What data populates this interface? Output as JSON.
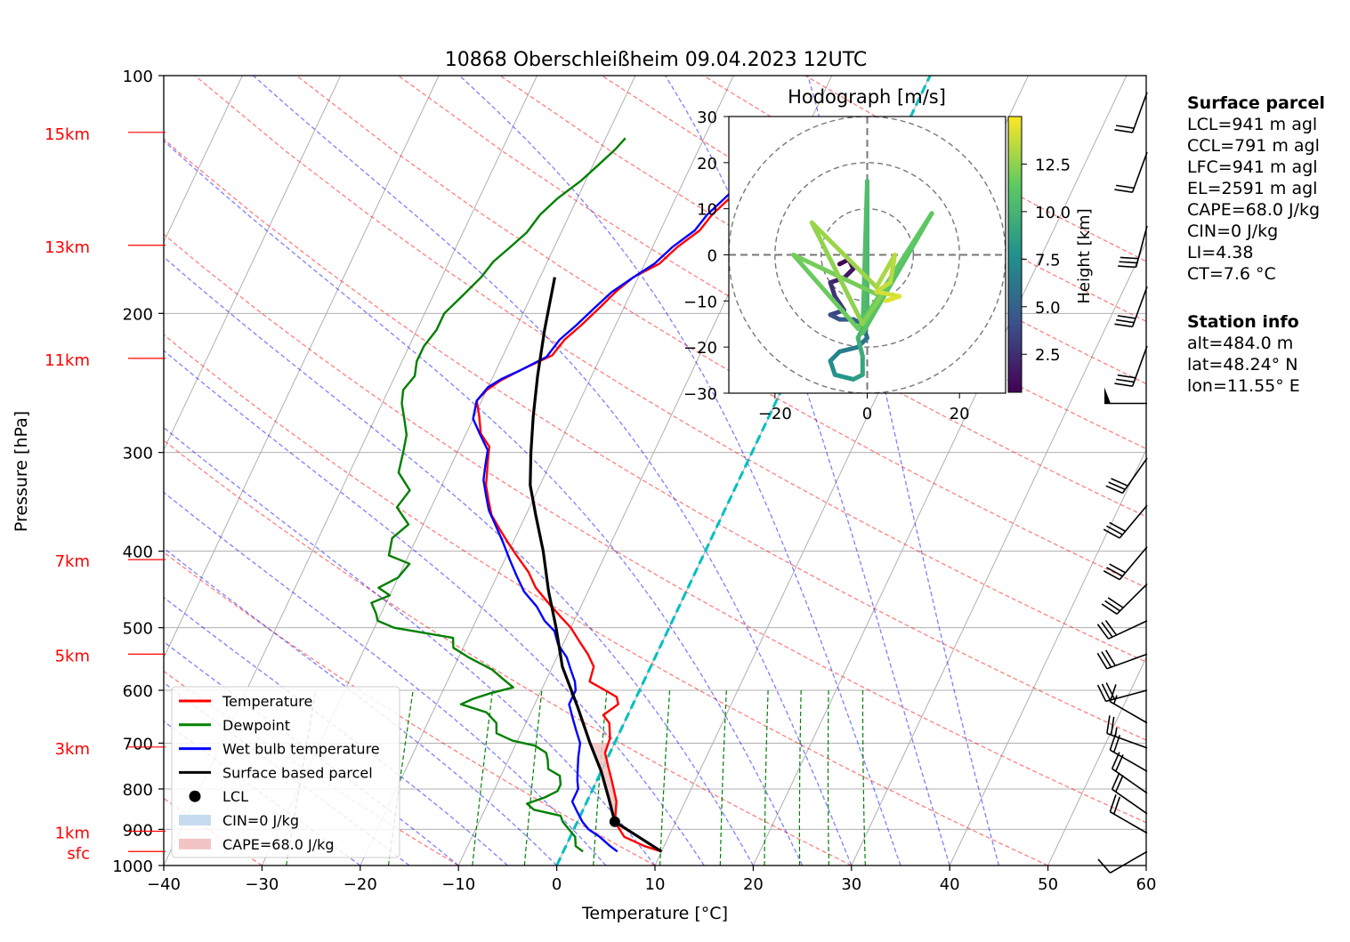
{
  "chart_data": {
    "type": "line",
    "title": "10868 Oberschleißheim 09.04.2023 12UTC",
    "xlabel": "Temperature [°C]",
    "ylabel": "Pressure [hPa]",
    "xlim": [
      -40,
      60
    ],
    "ylim": [
      1000,
      100
    ],
    "y_scale": "log",
    "x_ticks": [
      "−40",
      "−30",
      "−20",
      "−10",
      "0",
      "10",
      "20",
      "30",
      "40",
      "50",
      "60"
    ],
    "y_ticks": [
      {
        "p": 1000,
        "label": "1000"
      },
      {
        "p": 900,
        "label": "900"
      },
      {
        "p": 800,
        "label": "800"
      },
      {
        "p": 700,
        "label": "700"
      },
      {
        "p": 600,
        "label": "600"
      },
      {
        "p": 500,
        "label": "500"
      },
      {
        "p": 400,
        "label": "400"
      },
      {
        "p": 300,
        "label": "300"
      },
      {
        "p": 200,
        "label": "200"
      },
      {
        "p": 100,
        "label": "100"
      }
    ],
    "height_labels": [
      {
        "p": 960,
        "label": "sfc"
      },
      {
        "p": 905,
        "label": "1km"
      },
      {
        "p": 708,
        "label": "3km"
      },
      {
        "p": 540,
        "label": "5km"
      },
      {
        "p": 410,
        "label": "7km"
      },
      {
        "p": 228,
        "label": "11km"
      },
      {
        "p": 164,
        "label": "13km"
      },
      {
        "p": 118,
        "label": "15km"
      }
    ],
    "grid": true,
    "legend_position": "bottom-left",
    "series": [
      {
        "name": "Temperature",
        "color": "#ff0000",
        "points": [
          [
            10.0,
            960
          ],
          [
            8.0,
            945
          ],
          [
            5.5,
            920
          ],
          [
            3.8,
            880
          ],
          [
            3.5,
            860
          ],
          [
            3.0,
            830
          ],
          [
            1.5,
            780
          ],
          [
            0.5,
            750
          ],
          [
            -0.5,
            720
          ],
          [
            -0.7,
            690
          ],
          [
            -1.5,
            660
          ],
          [
            -2.5,
            645
          ],
          [
            -1.5,
            625
          ],
          [
            -2.0,
            612
          ],
          [
            -3.5,
            600
          ],
          [
            -5.5,
            585
          ],
          [
            -5.8,
            560
          ],
          [
            -7.0,
            540
          ],
          [
            -8.5,
            520
          ],
          [
            -10.0,
            500
          ],
          [
            -11.5,
            485
          ],
          [
            -13.5,
            465
          ],
          [
            -15.5,
            445
          ],
          [
            -17.0,
            425
          ],
          [
            -19.0,
            405
          ],
          [
            -20.5,
            390
          ],
          [
            -22.0,
            375
          ],
          [
            -23.5,
            360
          ],
          [
            -24.5,
            345
          ],
          [
            -25.5,
            330
          ],
          [
            -26.0,
            318
          ],
          [
            -26.5,
            307
          ],
          [
            -27.0,
            295
          ],
          [
            -28.5,
            284
          ],
          [
            -29.5,
            270
          ],
          [
            -30.5,
            258
          ],
          [
            -30.0,
            250
          ],
          [
            -29.0,
            243
          ],
          [
            -27.5,
            236
          ],
          [
            -25.0,
            226
          ],
          [
            -24.5,
            216
          ],
          [
            -23.5,
            207
          ],
          [
            -22.5,
            197
          ],
          [
            -21.5,
            187
          ],
          [
            -20.5,
            180
          ],
          [
            -18.5,
            173
          ],
          [
            -17.5,
            165
          ],
          [
            -16.0,
            157
          ],
          [
            -15.5,
            150
          ],
          [
            -14.5,
            143
          ],
          [
            -13.5,
            136
          ],
          [
            -12.5,
            130
          ],
          [
            -11.5,
            124
          ],
          [
            -10.5,
            120
          ]
        ]
      },
      {
        "name": "Dewpoint",
        "color": "#008000",
        "points": [
          [
            2.0,
            960
          ],
          [
            1.0,
            945
          ],
          [
            0.5,
            920
          ],
          [
            -0.5,
            900
          ],
          [
            -1.5,
            880
          ],
          [
            -2.0,
            865
          ],
          [
            -5.0,
            850
          ],
          [
            -6.0,
            835
          ],
          [
            -4.5,
            820
          ],
          [
            -3.5,
            805
          ],
          [
            -3.5,
            790
          ],
          [
            -4.0,
            770
          ],
          [
            -5.5,
            755
          ],
          [
            -6.0,
            735
          ],
          [
            -6.5,
            720
          ],
          [
            -8.0,
            705
          ],
          [
            -10.5,
            695
          ],
          [
            -12.5,
            680
          ],
          [
            -13.0,
            660
          ],
          [
            -14.5,
            640
          ],
          [
            -17.5,
            625
          ],
          [
            -16.5,
            615
          ],
          [
            -15.0,
            605
          ],
          [
            -13.0,
            595
          ],
          [
            -14.5,
            580
          ],
          [
            -16.0,
            565
          ],
          [
            -19.0,
            545
          ],
          [
            -21.0,
            530
          ],
          [
            -21.5,
            515
          ],
          [
            -28.0,
            500
          ],
          [
            -30.0,
            490
          ],
          [
            -30.5,
            480
          ],
          [
            -31.5,
            465
          ],
          [
            -30.0,
            455
          ],
          [
            -31.5,
            445
          ],
          [
            -30.0,
            432
          ],
          [
            -29.5,
            415
          ],
          [
            -32.0,
            405
          ],
          [
            -32.5,
            385
          ],
          [
            -31.5,
            370
          ],
          [
            -33.5,
            352
          ],
          [
            -33.0,
            335
          ],
          [
            -35.0,
            318
          ],
          [
            -35.5,
            300
          ],
          [
            -36.0,
            285
          ],
          [
            -37.0,
            272
          ],
          [
            -38.0,
            260
          ],
          [
            -38.5,
            250
          ],
          [
            -38.0,
            240
          ],
          [
            -38.5,
            230
          ],
          [
            -38.5,
            220
          ],
          [
            -38.0,
            210
          ],
          [
            -38.0,
            200
          ],
          [
            -37.0,
            190
          ],
          [
            -36.0,
            180
          ],
          [
            -35.5,
            172
          ],
          [
            -34.5,
            165
          ],
          [
            -33.5,
            158
          ],
          [
            -33.0,
            150
          ],
          [
            -32.0,
            143
          ],
          [
            -30.5,
            136
          ],
          [
            -29.5,
            130
          ],
          [
            -28.5,
            124
          ],
          [
            -28.0,
            120
          ]
        ]
      },
      {
        "name": "Wet bulb temperature",
        "color": "#0000ff",
        "points": [
          [
            5.5,
            960
          ],
          [
            4.5,
            945
          ],
          [
            3.0,
            920
          ],
          [
            1.5,
            900
          ],
          [
            0.5,
            880
          ],
          [
            -0.5,
            855
          ],
          [
            -1.5,
            830
          ],
          [
            -1.5,
            800
          ],
          [
            -2.0,
            780
          ],
          [
            -2.5,
            755
          ],
          [
            -3.0,
            730
          ],
          [
            -3.5,
            700
          ],
          [
            -4.5,
            675
          ],
          [
            -5.5,
            650
          ],
          [
            -6.5,
            625
          ],
          [
            -6.5,
            600
          ],
          [
            -7.0,
            585
          ],
          [
            -8.0,
            565
          ],
          [
            -9.0,
            545
          ],
          [
            -10.5,
            525
          ],
          [
            -11.5,
            505
          ],
          [
            -13.0,
            490
          ],
          [
            -14.5,
            470
          ],
          [
            -16.5,
            450
          ],
          [
            -18.0,
            430
          ],
          [
            -19.5,
            410
          ],
          [
            -21.0,
            390
          ],
          [
            -22.5,
            372
          ],
          [
            -24.0,
            355
          ],
          [
            -25.0,
            340
          ],
          [
            -26.0,
            325
          ],
          [
            -26.5,
            312
          ],
          [
            -27.0,
            298
          ],
          [
            -28.5,
            285
          ],
          [
            -30.0,
            272
          ],
          [
            -30.5,
            258
          ],
          [
            -30.0,
            248
          ],
          [
            -29.0,
            242
          ],
          [
            -27.5,
            236
          ],
          [
            -25.5,
            227
          ],
          [
            -25.0,
            216
          ],
          [
            -24.0,
            207
          ],
          [
            -23.0,
            197
          ],
          [
            -22.0,
            188
          ],
          [
            -20.5,
            180
          ],
          [
            -19.0,
            173
          ],
          [
            -18.0,
            165
          ],
          [
            -16.5,
            157
          ],
          [
            -16.0,
            150
          ],
          [
            -15.0,
            143
          ],
          [
            -14.0,
            136
          ],
          [
            -13.0,
            130
          ],
          [
            -12.0,
            124
          ],
          [
            -11.0,
            120
          ]
        ]
      },
      {
        "name": "Surface based parcel",
        "color": "#000000",
        "points": [
          [
            10.0,
            960
          ],
          [
            3.8,
            880
          ],
          [
            2.0,
            820
          ],
          [
            0.0,
            760
          ],
          [
            -2.5,
            700
          ],
          [
            -5.5,
            630
          ],
          [
            -9.0,
            560
          ],
          [
            -11.5,
            500
          ],
          [
            -14.0,
            450
          ],
          [
            -16.5,
            400
          ],
          [
            -19.0,
            360
          ],
          [
            -21.0,
            330
          ],
          [
            -22.5,
            300
          ],
          [
            -24.0,
            270
          ],
          [
            -25.5,
            240
          ],
          [
            -27.0,
            210
          ],
          [
            -28.5,
            180
          ]
        ]
      }
    ],
    "lcl": {
      "name": "LCL",
      "t": 3.8,
      "p": 880
    },
    "cin_label": "CIN=0 J/kg",
    "cape_label": "CAPE=68.0 J/kg",
    "legend": [
      {
        "label": "Temperature",
        "kind": "line",
        "color": "#ff0000"
      },
      {
        "label": "Dewpoint",
        "kind": "line",
        "color": "#008000"
      },
      {
        "label": "Wet bulb temperature",
        "kind": "line",
        "color": "#0000ff"
      },
      {
        "label": "Surface based parcel",
        "kind": "line",
        "color": "#000000"
      },
      {
        "label": "LCL",
        "kind": "dot",
        "color": "#000000"
      },
      {
        "label": "CIN=0 J/kg",
        "kind": "patch",
        "color": "#c6dbef"
      },
      {
        "label": "CAPE=68.0 J/kg",
        "kind": "patch",
        "color": "#f2c4c4"
      }
    ],
    "wind_barbs": [
      {
        "p": 960,
        "speed_kt": 10,
        "dir_deg": 240
      },
      {
        "p": 910,
        "speed_kt": 20,
        "dir_deg": 300
      },
      {
        "p": 860,
        "speed_kt": 20,
        "dir_deg": 305
      },
      {
        "p": 810,
        "speed_kt": 20,
        "dir_deg": 305
      },
      {
        "p": 760,
        "speed_kt": 20,
        "dir_deg": 300
      },
      {
        "p": 710,
        "speed_kt": 25,
        "dir_deg": 290
      },
      {
        "p": 660,
        "speed_kt": 15,
        "dir_deg": 300
      },
      {
        "p": 600,
        "speed_kt": 30,
        "dir_deg": 255
      },
      {
        "p": 540,
        "speed_kt": 30,
        "dir_deg": 250
      },
      {
        "p": 490,
        "speed_kt": 30,
        "dir_deg": 245
      },
      {
        "p": 440,
        "speed_kt": 30,
        "dir_deg": 225
      },
      {
        "p": 395,
        "speed_kt": 30,
        "dir_deg": 220
      },
      {
        "p": 350,
        "speed_kt": 30,
        "dir_deg": 220
      },
      {
        "p": 305,
        "speed_kt": 30,
        "dir_deg": 215
      },
      {
        "p": 260,
        "speed_kt": 50,
        "dir_deg": 270
      },
      {
        "p": 220,
        "speed_kt": 30,
        "dir_deg": 200
      },
      {
        "p": 185,
        "speed_kt": 30,
        "dir_deg": 200
      },
      {
        "p": 155,
        "speed_kt": 30,
        "dir_deg": 195
      },
      {
        "p": 125,
        "speed_kt": 20,
        "dir_deg": 200
      },
      {
        "p": 105,
        "speed_kt": 20,
        "dir_deg": 200
      }
    ],
    "hodograph": {
      "title": "Hodograph [m/s]",
      "xlim": [
        -30,
        30
      ],
      "ylim": [
        -30,
        30
      ],
      "x_ticks": [
        "−20",
        "0",
        "20"
      ],
      "y_ticks": [
        "30",
        "20",
        "10",
        "0",
        "−10",
        "−20",
        "−30"
      ],
      "rings": [
        10,
        20,
        30
      ],
      "colorbar_label": "Height [km]",
      "colorbar_ticks": [
        "2.5",
        "5.0",
        "7.5",
        "10.0",
        "12.5"
      ],
      "colorbar_range": [
        0.5,
        15.0
      ],
      "points": [
        [
          -6,
          -2,
          0.5
        ],
        [
          -4,
          -1,
          1.0
        ],
        [
          -3,
          -3,
          1.5
        ],
        [
          -5,
          -5,
          2.0
        ],
        [
          -8,
          -6,
          2.5
        ],
        [
          -7,
          -9,
          3.0
        ],
        [
          -5,
          -12,
          3.5
        ],
        [
          -8,
          -13,
          4.0
        ],
        [
          -6,
          -14,
          4.5
        ],
        [
          -3,
          -14,
          5.0
        ],
        [
          -1,
          -15,
          5.5
        ],
        [
          0,
          -18,
          6.0
        ],
        [
          -2,
          -20,
          6.5
        ],
        [
          -6,
          -21,
          7.0
        ],
        [
          -8,
          -23,
          7.5
        ],
        [
          -7,
          -26,
          8.0
        ],
        [
          -3,
          -27,
          8.5
        ],
        [
          -1,
          -26,
          9.0
        ],
        [
          -1,
          -22,
          9.5
        ],
        [
          -2,
          -18,
          10.0
        ],
        [
          0,
          -14,
          10.3
        ],
        [
          0,
          16,
          10.6
        ],
        [
          -1,
          -17,
          11.0
        ],
        [
          14,
          9,
          11.3
        ],
        [
          -2,
          -16,
          11.6
        ],
        [
          -16,
          0,
          11.9
        ],
        [
          3,
          -9,
          12.2
        ],
        [
          -1,
          -15,
          12.5
        ],
        [
          -12,
          7,
          12.8
        ],
        [
          2,
          -7,
          13.1
        ],
        [
          6,
          0,
          13.4
        ],
        [
          5,
          -6,
          13.7
        ],
        [
          2,
          -8,
          14.0
        ],
        [
          7,
          -9,
          14.3
        ],
        [
          4,
          -10,
          14.6
        ]
      ]
    },
    "surface_parcel": {
      "heading": "Surface parcel",
      "lines": [
        "LCL=941 m agl",
        "CCL=791 m agl",
        "LFC=941 m agl",
        "EL=2591 m agl",
        "CAPE=68.0 J/kg",
        "CIN=0 J/kg",
        "LI=4.38",
        "CT=7.6 °C"
      ]
    },
    "station_info": {
      "heading": "Station info",
      "lines": [
        "alt=484.0 m",
        "lat=48.24° N",
        "lon=11.55° E"
      ]
    }
  }
}
